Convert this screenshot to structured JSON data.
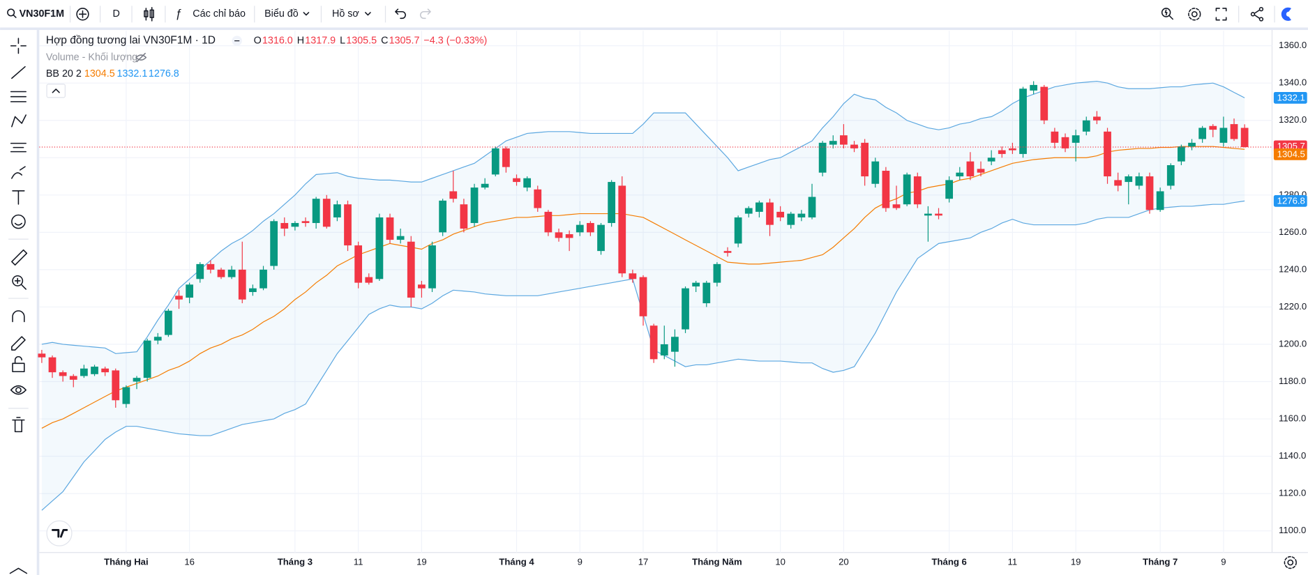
{
  "toolbar": {
    "symbol": "VN30F1M",
    "interval": "D",
    "indicators": "Các chỉ báo",
    "chart": "Biểu đồ",
    "profile": "Hồ sơ"
  },
  "chart_data": {
    "type": "candlestick",
    "title": "Hợp đồng tương lai VN30F1M · 1D",
    "ohlc_legend": [
      {
        "key": "O",
        "text": "1316.0"
      },
      {
        "key": "H",
        "text": "1317.9"
      },
      {
        "key": "L",
        "text": "1305.5"
      },
      {
        "key": "C",
        "text": "1305.7"
      }
    ],
    "change": "−4.3 (−0.33%)",
    "volume_label": "Volume - Khối lượng",
    "up_color": "#089981",
    "down_color": "#f23645",
    "ylim": [
      1088.4,
      1368
    ],
    "yticks": [
      {
        "value": 1100,
        "label": "1100.0"
      },
      {
        "value": 1120,
        "label": "1120.0"
      },
      {
        "value": 1140,
        "label": "1140.0"
      },
      {
        "value": 1160,
        "label": "1160.0"
      },
      {
        "value": 1180,
        "label": "1180.0"
      },
      {
        "value": 1200,
        "label": "1200.0"
      },
      {
        "value": 1220,
        "label": "1220.0"
      },
      {
        "value": 1240,
        "label": "1240.0"
      },
      {
        "value": 1260,
        "label": "1260.0"
      },
      {
        "value": 1280,
        "label": "1280.0"
      },
      {
        "value": 1300,
        "label": "1300.0"
      },
      {
        "value": 1320,
        "label": "1320.0"
      },
      {
        "value": 1340,
        "label": "1340.0"
      },
      {
        "value": 1360,
        "label": "1360.0"
      }
    ],
    "grid": true,
    "categories": [
      null,
      null,
      null,
      null,
      null,
      null,
      null,
      null,
      "Tháng Hai",
      null,
      null,
      null,
      null,
      null,
      "16",
      null,
      null,
      null,
      null,
      null,
      null,
      null,
      null,
      null,
      "Tháng 3",
      null,
      null,
      null,
      null,
      null,
      "11",
      null,
      null,
      null,
      null,
      null,
      "19",
      null,
      null,
      null,
      null,
      null,
      null,
      null,
      null,
      "Tháng 4",
      null,
      null,
      null,
      null,
      null,
      "9",
      null,
      null,
      null,
      null,
      null,
      "17",
      null,
      null,
      null,
      null,
      null,
      null,
      "Tháng Năm",
      null,
      null,
      null,
      null,
      null,
      "10",
      null,
      null,
      null,
      null,
      null,
      "20",
      null,
      null,
      null,
      null,
      null,
      null,
      null,
      null,
      null,
      "Tháng 6",
      null,
      null,
      null,
      null,
      null,
      "11",
      null,
      null,
      null,
      null,
      null,
      "19",
      null,
      null,
      null,
      null,
      null,
      null,
      null,
      "Tháng 7",
      null,
      null,
      null,
      null,
      null,
      "9",
      null,
      null
    ],
    "candles": [
      [
        1195,
        1197,
        1190,
        1193
      ],
      [
        1193,
        1194,
        1182,
        1185
      ],
      [
        1185,
        1186,
        1180,
        1183
      ],
      [
        1183,
        1184,
        1177,
        1181
      ],
      [
        1183,
        1189,
        1182,
        1187
      ],
      [
        1184,
        1189,
        1183,
        1188
      ],
      [
        1187,
        1188,
        1183,
        1185
      ],
      [
        1186,
        1187,
        1166,
        1170
      ],
      [
        1168,
        1178,
        1166,
        1177
      ],
      [
        1180,
        1183,
        1176,
        1182
      ],
      [
        1182,
        1203,
        1180,
        1202
      ],
      [
        1202,
        1206,
        1200,
        1204
      ],
      [
        1205,
        1219,
        1204,
        1218
      ],
      [
        1226,
        1229,
        1219,
        1224
      ],
      [
        1225,
        1233,
        1222,
        1232
      ],
      [
        1235,
        1244,
        1233,
        1243
      ],
      [
        1243,
        1245,
        1238,
        1240
      ],
      [
        1240,
        1241,
        1235,
        1236
      ],
      [
        1236,
        1242,
        1235,
        1240
      ],
      [
        1240,
        1255,
        1222,
        1224
      ],
      [
        1228,
        1232,
        1226,
        1230
      ],
      [
        1230,
        1242,
        1229,
        1240
      ],
      [
        1242,
        1267,
        1240,
        1266
      ],
      [
        1265,
        1268,
        1258,
        1262
      ],
      [
        1263,
        1266,
        1261,
        1265
      ],
      [
        1266,
        1268,
        1263,
        1265
      ],
      [
        1265,
        1279,
        1262,
        1278
      ],
      [
        1278,
        1280,
        1262,
        1263
      ],
      [
        1268,
        1277,
        1266,
        1275
      ],
      [
        1275,
        1277,
        1250,
        1253
      ],
      [
        1253,
        1255,
        1230,
        1233
      ],
      [
        1236,
        1238,
        1232,
        1233
      ],
      [
        1235,
        1270,
        1234,
        1268
      ],
      [
        1268,
        1270,
        1254,
        1256
      ],
      [
        1256,
        1262,
        1254,
        1258
      ],
      [
        1255,
        1258,
        1220,
        1225
      ],
      [
        1232,
        1234,
        1225,
        1230
      ],
      [
        1230,
        1255,
        1228,
        1253
      ],
      [
        1260,
        1278,
        1258,
        1277
      ],
      [
        1282,
        1293,
        1276,
        1278
      ],
      [
        1275,
        1278,
        1260,
        1262
      ],
      [
        1265,
        1286,
        1263,
        1284
      ],
      [
        1284,
        1289,
        1283,
        1286
      ],
      [
        1291,
        1306,
        1290,
        1305
      ],
      [
        1305,
        1306,
        1292,
        1295
      ],
      [
        1289,
        1291,
        1285,
        1287
      ],
      [
        1284,
        1290,
        1282,
        1289
      ],
      [
        1283,
        1285,
        1271,
        1273
      ],
      [
        1271,
        1272,
        1258,
        1260
      ],
      [
        1260,
        1262,
        1255,
        1257
      ],
      [
        1259,
        1261,
        1250,
        1257
      ],
      [
        1260,
        1266,
        1258,
        1264
      ],
      [
        1265,
        1266,
        1258,
        1260
      ],
      [
        1250,
        1265,
        1248,
        1264
      ],
      [
        1265,
        1288,
        1263,
        1287
      ],
      [
        1285,
        1290,
        1236,
        1238
      ],
      [
        1238,
        1240,
        1233,
        1235
      ],
      [
        1236,
        1237,
        1210,
        1215
      ],
      [
        1210,
        1211,
        1190,
        1192
      ],
      [
        1194,
        1210,
        1192,
        1200
      ],
      [
        1196,
        1208,
        1188,
        1204
      ],
      [
        1208,
        1231,
        1206,
        1230
      ],
      [
        1231,
        1234,
        1228,
        1233
      ],
      [
        1222,
        1234,
        1220,
        1233
      ],
      [
        1233,
        1244,
        1231,
        1243
      ],
      [
        1250,
        1252,
        1247,
        1249
      ],
      [
        1254,
        1269,
        1252,
        1268
      ],
      [
        1270,
        1274,
        1268,
        1273
      ],
      [
        1271,
        1277,
        1268,
        1276
      ],
      [
        1276,
        1278,
        1258,
        1264
      ],
      [
        1271,
        1274,
        1266,
        1268
      ],
      [
        1264,
        1271,
        1262,
        1270
      ],
      [
        1268,
        1272,
        1266,
        1270
      ],
      [
        1268,
        1286,
        1267,
        1279
      ],
      [
        1292,
        1309,
        1290,
        1308
      ],
      [
        1307,
        1312,
        1305,
        1309
      ],
      [
        1312,
        1318,
        1305,
        1307
      ],
      [
        1307,
        1309,
        1303,
        1305
      ],
      [
        1308,
        1310,
        1285,
        1290
      ],
      [
        1286,
        1300,
        1284,
        1298
      ],
      [
        1293,
        1295,
        1271,
        1273
      ],
      [
        1275,
        1285,
        1272,
        1273
      ],
      [
        1275,
        1292,
        1274,
        1291
      ],
      [
        1290,
        1292,
        1273,
        1275
      ],
      [
        1269,
        1274,
        1255,
        1270
      ],
      [
        1270,
        1273,
        1267,
        1269
      ],
      [
        1278,
        1290,
        1276,
        1288
      ],
      [
        1290,
        1295,
        1288,
        1292
      ],
      [
        1298,
        1303,
        1288,
        1290
      ],
      [
        1294,
        1298,
        1290,
        1292
      ],
      [
        1298,
        1304,
        1296,
        1300
      ],
      [
        1304,
        1306,
        1300,
        1302
      ],
      [
        1305,
        1308,
        1302,
        1304
      ],
      [
        1302,
        1338,
        1300,
        1337
      ],
      [
        1336,
        1341,
        1334,
        1339
      ],
      [
        1338,
        1339,
        1318,
        1320
      ],
      [
        1314,
        1316,
        1305,
        1308
      ],
      [
        1311,
        1313,
        1303,
        1305
      ],
      [
        1308,
        1315,
        1298,
        1312
      ],
      [
        1314,
        1322,
        1312,
        1320
      ],
      [
        1322,
        1325,
        1318,
        1320
      ],
      [
        1314,
        1316,
        1286,
        1290
      ],
      [
        1288,
        1292,
        1282,
        1285
      ],
      [
        1287,
        1291,
        1275,
        1290
      ],
      [
        1285,
        1292,
        1283,
        1290
      ],
      [
        1290,
        1292,
        1270,
        1272
      ],
      [
        1272,
        1284,
        1271,
        1282
      ],
      [
        1285,
        1297,
        1283,
        1296
      ],
      [
        1298,
        1307,
        1296,
        1306
      ],
      [
        1306,
        1310,
        1304,
        1308
      ],
      [
        1310,
        1317,
        1308,
        1316
      ],
      [
        1317,
        1318,
        1311,
        1315
      ],
      [
        1308,
        1322,
        1306,
        1316
      ],
      [
        1318,
        1321,
        1309,
        1310
      ],
      [
        1316,
        1317.9,
        1305.5,
        1305.7
      ]
    ],
    "bb": {
      "label": "BB 20 2",
      "middle_color": "#f57c00",
      "band_color": "#5ba7e0",
      "middle": [
        1155,
        1158,
        1160,
        1163,
        1166,
        1169,
        1172,
        1175,
        1177,
        1179,
        1181,
        1183,
        1186,
        1188,
        1191,
        1195,
        1198,
        1200,
        1203,
        1205,
        1208,
        1212,
        1215,
        1219,
        1224,
        1228,
        1233,
        1237,
        1242,
        1245,
        1248,
        1250,
        1252,
        1254,
        1253,
        1252,
        1251,
        1254,
        1256,
        1259,
        1261,
        1263,
        1265,
        1266,
        1267,
        1268,
        1268,
        1268.5,
        1269,
        1269,
        1269.5,
        1270,
        1270,
        1270,
        1270,
        1270,
        1269,
        1268,
        1265,
        1262,
        1259,
        1256,
        1253,
        1250,
        1247,
        1244,
        1243.5,
        1243,
        1243,
        1243.5,
        1244,
        1244.5,
        1245,
        1246.5,
        1248,
        1252,
        1257,
        1262,
        1268,
        1273,
        1276,
        1278,
        1281,
        1282,
        1284,
        1285,
        1286,
        1288,
        1289,
        1291,
        1293,
        1295,
        1297,
        1298,
        1299,
        1299.5,
        1300,
        1300,
        1300,
        1300,
        1301,
        1303,
        1304,
        1304.5,
        1305,
        1305,
        1305.5,
        1305.5,
        1306,
        1306,
        1306,
        1306,
        1305.5,
        1305,
        1304.5
      ],
      "upper": [
        1200,
        1201,
        1200,
        1199.5,
        1199,
        1198.5,
        1198,
        1195,
        1195.5,
        1196,
        1204,
        1213,
        1221,
        1230,
        1235,
        1240,
        1245,
        1250,
        1254,
        1257,
        1261,
        1266,
        1270,
        1275,
        1280,
        1286,
        1291,
        1291.5,
        1292,
        1290,
        1289,
        1288.5,
        1288,
        1288,
        1287.5,
        1287,
        1287,
        1289,
        1291,
        1293,
        1295,
        1297,
        1301,
        1305,
        1309,
        1311,
        1313,
        1313.5,
        1314,
        1314,
        1314,
        1313.5,
        1313,
        1313,
        1313,
        1313,
        1313,
        1318,
        1324,
        1324,
        1324,
        1324,
        1318,
        1312,
        1306,
        1300,
        1293,
        1295,
        1297,
        1299,
        1300,
        1303,
        1306,
        1309,
        1316,
        1322,
        1329,
        1334,
        1332,
        1331,
        1327,
        1324,
        1320,
        1318,
        1316,
        1315,
        1316,
        1318,
        1319,
        1321,
        1322,
        1325,
        1329,
        1332,
        1334,
        1336,
        1338,
        1339,
        1340,
        1340.5,
        1341,
        1340,
        1338,
        1337,
        1337,
        1337,
        1337.5,
        1338,
        1338,
        1339,
        1339.5,
        1340,
        1338,
        1335,
        1332.1
      ],
      "lower": [
        1111,
        1116,
        1121,
        1129,
        1137,
        1143,
        1149,
        1153,
        1156,
        1156,
        1155,
        1154,
        1153,
        1152,
        1151.5,
        1151,
        1151,
        1153,
        1155,
        1157,
        1158,
        1159,
        1160,
        1163,
        1165,
        1168,
        1177,
        1186,
        1195,
        1202,
        1209,
        1216,
        1219,
        1221,
        1220,
        1220,
        1219,
        1222,
        1226,
        1229,
        1228.5,
        1228,
        1227,
        1226.5,
        1226,
        1226,
        1226,
        1226,
        1227,
        1228,
        1229,
        1230,
        1231,
        1232,
        1233,
        1234,
        1235,
        1216,
        1197,
        1194,
        1191,
        1188,
        1189,
        1189,
        1190,
        1191,
        1192,
        1191.5,
        1191,
        1191,
        1191,
        1190.5,
        1190,
        1190,
        1187,
        1185,
        1186,
        1188,
        1197,
        1206,
        1217,
        1228,
        1237,
        1246,
        1250,
        1254,
        1255,
        1256,
        1257,
        1260,
        1262,
        1265,
        1267,
        1265,
        1264,
        1264,
        1264,
        1264,
        1264,
        1265,
        1267,
        1268,
        1268,
        1268,
        1270,
        1272,
        1273,
        1273.5,
        1274,
        1274,
        1274.5,
        1275,
        1275,
        1276,
        1276.8
      ]
    }
  }
}
